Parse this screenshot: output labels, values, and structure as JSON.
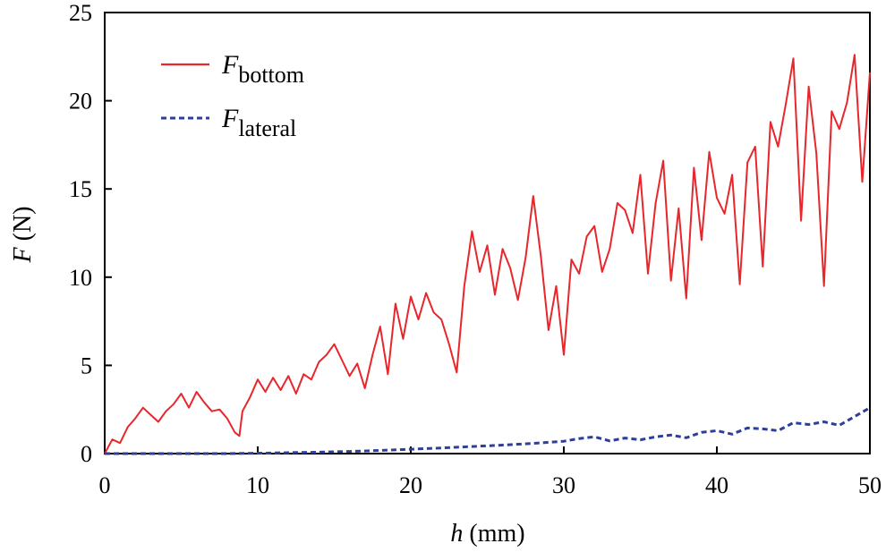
{
  "chart_data": {
    "type": "line",
    "title": "",
    "xlabel": "h (mm)",
    "ylabel": "F (N)",
    "xlabel_var": "h",
    "xlabel_unit": " (mm)",
    "ylabel_var": "F",
    "ylabel_unit": " (N)",
    "xlim": [
      0,
      50
    ],
    "ylim": [
      0,
      25
    ],
    "xticks": [
      "0",
      "10",
      "20",
      "30",
      "40",
      "50"
    ],
    "yticks": [
      "0",
      "5",
      "10",
      "15",
      "20",
      "25"
    ],
    "grid": false,
    "legend": "top-left",
    "series": [
      {
        "name": "F_bottom",
        "legend_main": "F",
        "legend_sub": "bottom",
        "color": "#e8262b",
        "dash": "solid",
        "x": [
          0,
          0.5,
          1,
          1.5,
          2,
          2.5,
          3,
          3.5,
          4,
          4.5,
          5,
          5.5,
          6,
          6.5,
          7,
          7.5,
          8,
          8.5,
          8.8,
          9,
          9.5,
          10,
          10.5,
          11,
          11.5,
          12,
          12.5,
          13,
          13.5,
          14,
          14.5,
          15,
          15.5,
          16,
          16.5,
          17,
          17.5,
          18,
          18.5,
          19,
          19.5,
          20,
          20.5,
          21,
          21.5,
          22,
          22.5,
          23,
          23.5,
          24,
          24.5,
          25,
          25.5,
          26,
          26.5,
          27,
          27.5,
          28,
          28.5,
          29,
          29.5,
          30,
          30.5,
          31,
          31.5,
          32,
          32.5,
          33,
          33.5,
          34,
          34.5,
          35,
          35.5,
          36,
          36.5,
          37,
          37.5,
          38,
          38.5,
          39,
          39.5,
          40,
          40.5,
          41,
          41.5,
          42,
          42.5,
          43,
          43.5,
          44,
          44.5,
          45,
          45.5,
          46,
          46.5,
          47,
          47.5,
          48,
          48.5,
          49,
          49.5,
          50
        ],
        "y": [
          0,
          0.8,
          0.6,
          1.5,
          2.0,
          2.6,
          2.2,
          1.8,
          2.4,
          2.8,
          3.4,
          2.6,
          3.5,
          2.9,
          2.4,
          2.5,
          2.0,
          1.2,
          1.0,
          2.4,
          3.2,
          4.2,
          3.5,
          4.3,
          3.6,
          4.4,
          3.4,
          4.5,
          4.2,
          5.2,
          5.6,
          6.2,
          5.3,
          4.4,
          5.1,
          3.7,
          5.6,
          7.2,
          4.5,
          8.5,
          6.5,
          8.9,
          7.6,
          9.1,
          8.0,
          7.6,
          6.2,
          4.6,
          9.5,
          12.6,
          10.3,
          11.8,
          9.0,
          11.6,
          10.5,
          8.7,
          11.1,
          14.6,
          11.2,
          7.0,
          9.5,
          5.6,
          11.0,
          10.2,
          12.3,
          12.9,
          10.3,
          11.6,
          14.2,
          13.8,
          12.5,
          15.8,
          10.2,
          14.2,
          16.6,
          9.8,
          13.9,
          8.8,
          16.2,
          12.1,
          17.1,
          14.5,
          13.6,
          15.8,
          9.6,
          16.5,
          17.4,
          10.6,
          18.8,
          17.4,
          19.8,
          22.4,
          13.2,
          20.8,
          17.0,
          9.5,
          19.4,
          18.4,
          19.9,
          22.6,
          15.4,
          21.6
        ]
      },
      {
        "name": "F_lateral",
        "legend_main": "F",
        "legend_sub": "lateral",
        "color": "#2d3f9a",
        "dash": "dashed",
        "x": [
          0,
          2,
          4,
          6,
          8,
          10,
          12,
          14,
          16,
          18,
          20,
          22,
          24,
          26,
          28,
          30,
          31,
          32,
          33,
          34,
          35,
          36,
          37,
          38,
          39,
          40,
          41,
          42,
          43,
          44,
          45,
          46,
          47,
          48,
          49,
          50
        ],
        "y": [
          0,
          0,
          0,
          0,
          0,
          0.02,
          0.05,
          0.08,
          0.12,
          0.18,
          0.25,
          0.32,
          0.4,
          0.48,
          0.58,
          0.7,
          0.85,
          0.95,
          0.72,
          0.88,
          0.78,
          0.95,
          1.05,
          0.9,
          1.2,
          1.3,
          1.1,
          1.45,
          1.4,
          1.3,
          1.75,
          1.65,
          1.8,
          1.6,
          2.1,
          2.6
        ]
      }
    ]
  }
}
